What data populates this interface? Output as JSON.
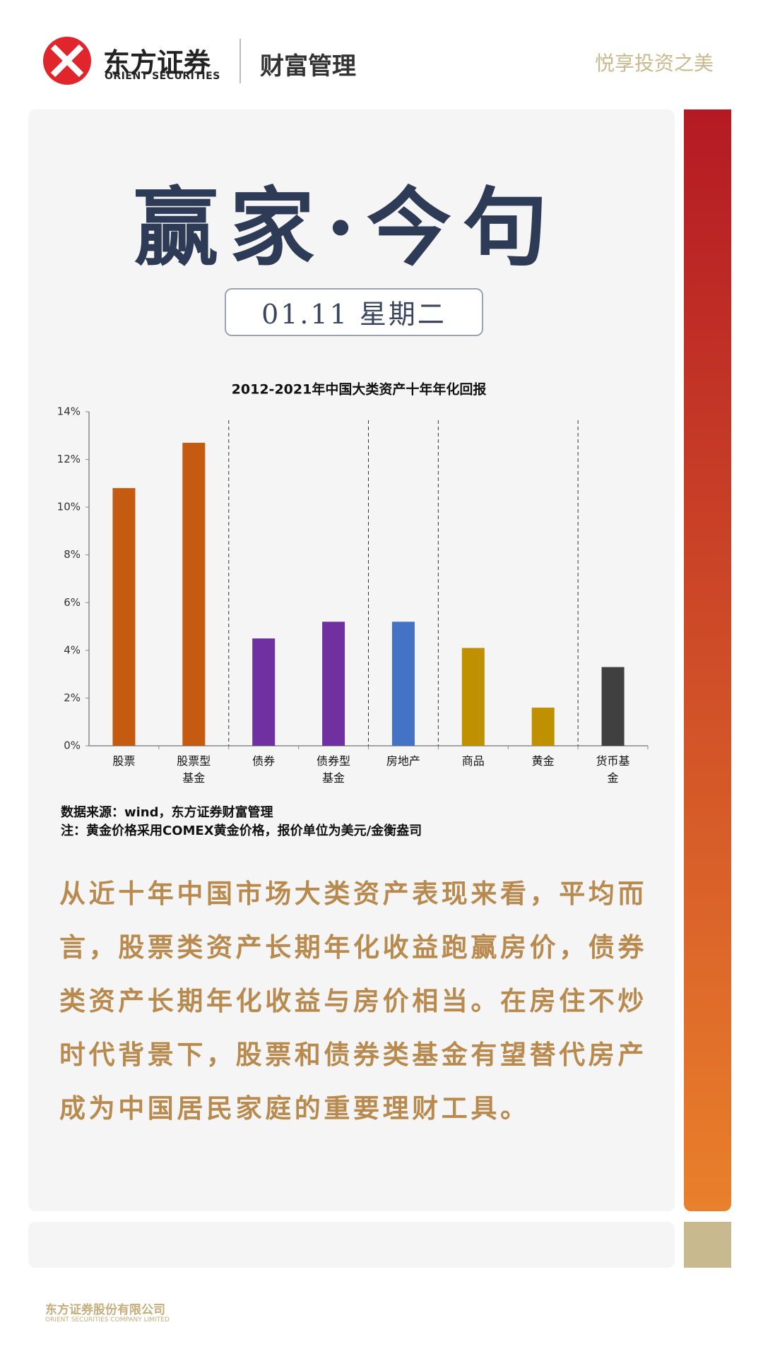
{
  "header": {
    "brand": "东方证券",
    "brand_en": "ORIENT SECURITIES",
    "section": "财富管理",
    "slogan": "悦享投资之美"
  },
  "banner": {
    "title": "赢家·今句",
    "date": "01.11 星期二"
  },
  "chart_data": {
    "type": "bar",
    "title": "2012-2021年中国大类资产十年年化回报",
    "categories": [
      "股票",
      "股票型基金",
      "债券",
      "债券型基金",
      "房地产",
      "商品",
      "黄金",
      "货币基金"
    ],
    "values": [
      10.8,
      12.7,
      4.5,
      5.2,
      5.2,
      4.1,
      1.6,
      3.3
    ],
    "colors": [
      "#c55a11",
      "#c55a11",
      "#7030a0",
      "#7030a0",
      "#4472c4",
      "#bf9000",
      "#bf9000",
      "#404040"
    ],
    "ylim": [
      0,
      14
    ],
    "yticks": [
      {
        "value": 0,
        "label": "0%"
      },
      {
        "value": 2,
        "label": "2%"
      },
      {
        "value": 4,
        "label": "4%"
      },
      {
        "value": 6,
        "label": "6%"
      },
      {
        "value": 8,
        "label": "8%"
      },
      {
        "value": 10,
        "label": "10%"
      },
      {
        "value": 12,
        "label": "12%"
      },
      {
        "value": 14,
        "label": "14%"
      }
    ],
    "grid": false
  },
  "notes": [
    "数据来源：wind，东方证券财富管理",
    "注：黄金价格采用COMEX黄金价格，报价单位为美元/金衡盎司"
  ],
  "paragraph": "从近十年中国市场大类资产表现来看，平均而言，股票类资产长期年化收益跑赢房价，债券类资产长期年化收益与房价相当。在房住不炒时代背景下，股票和债券类基金有望替代房产成为中国居民家庭的重要理财工具。",
  "footer": {
    "company": "东方证券股份有限公司",
    "company_en": "ORIENT SECURITIES COMPANY LIMITED"
  }
}
